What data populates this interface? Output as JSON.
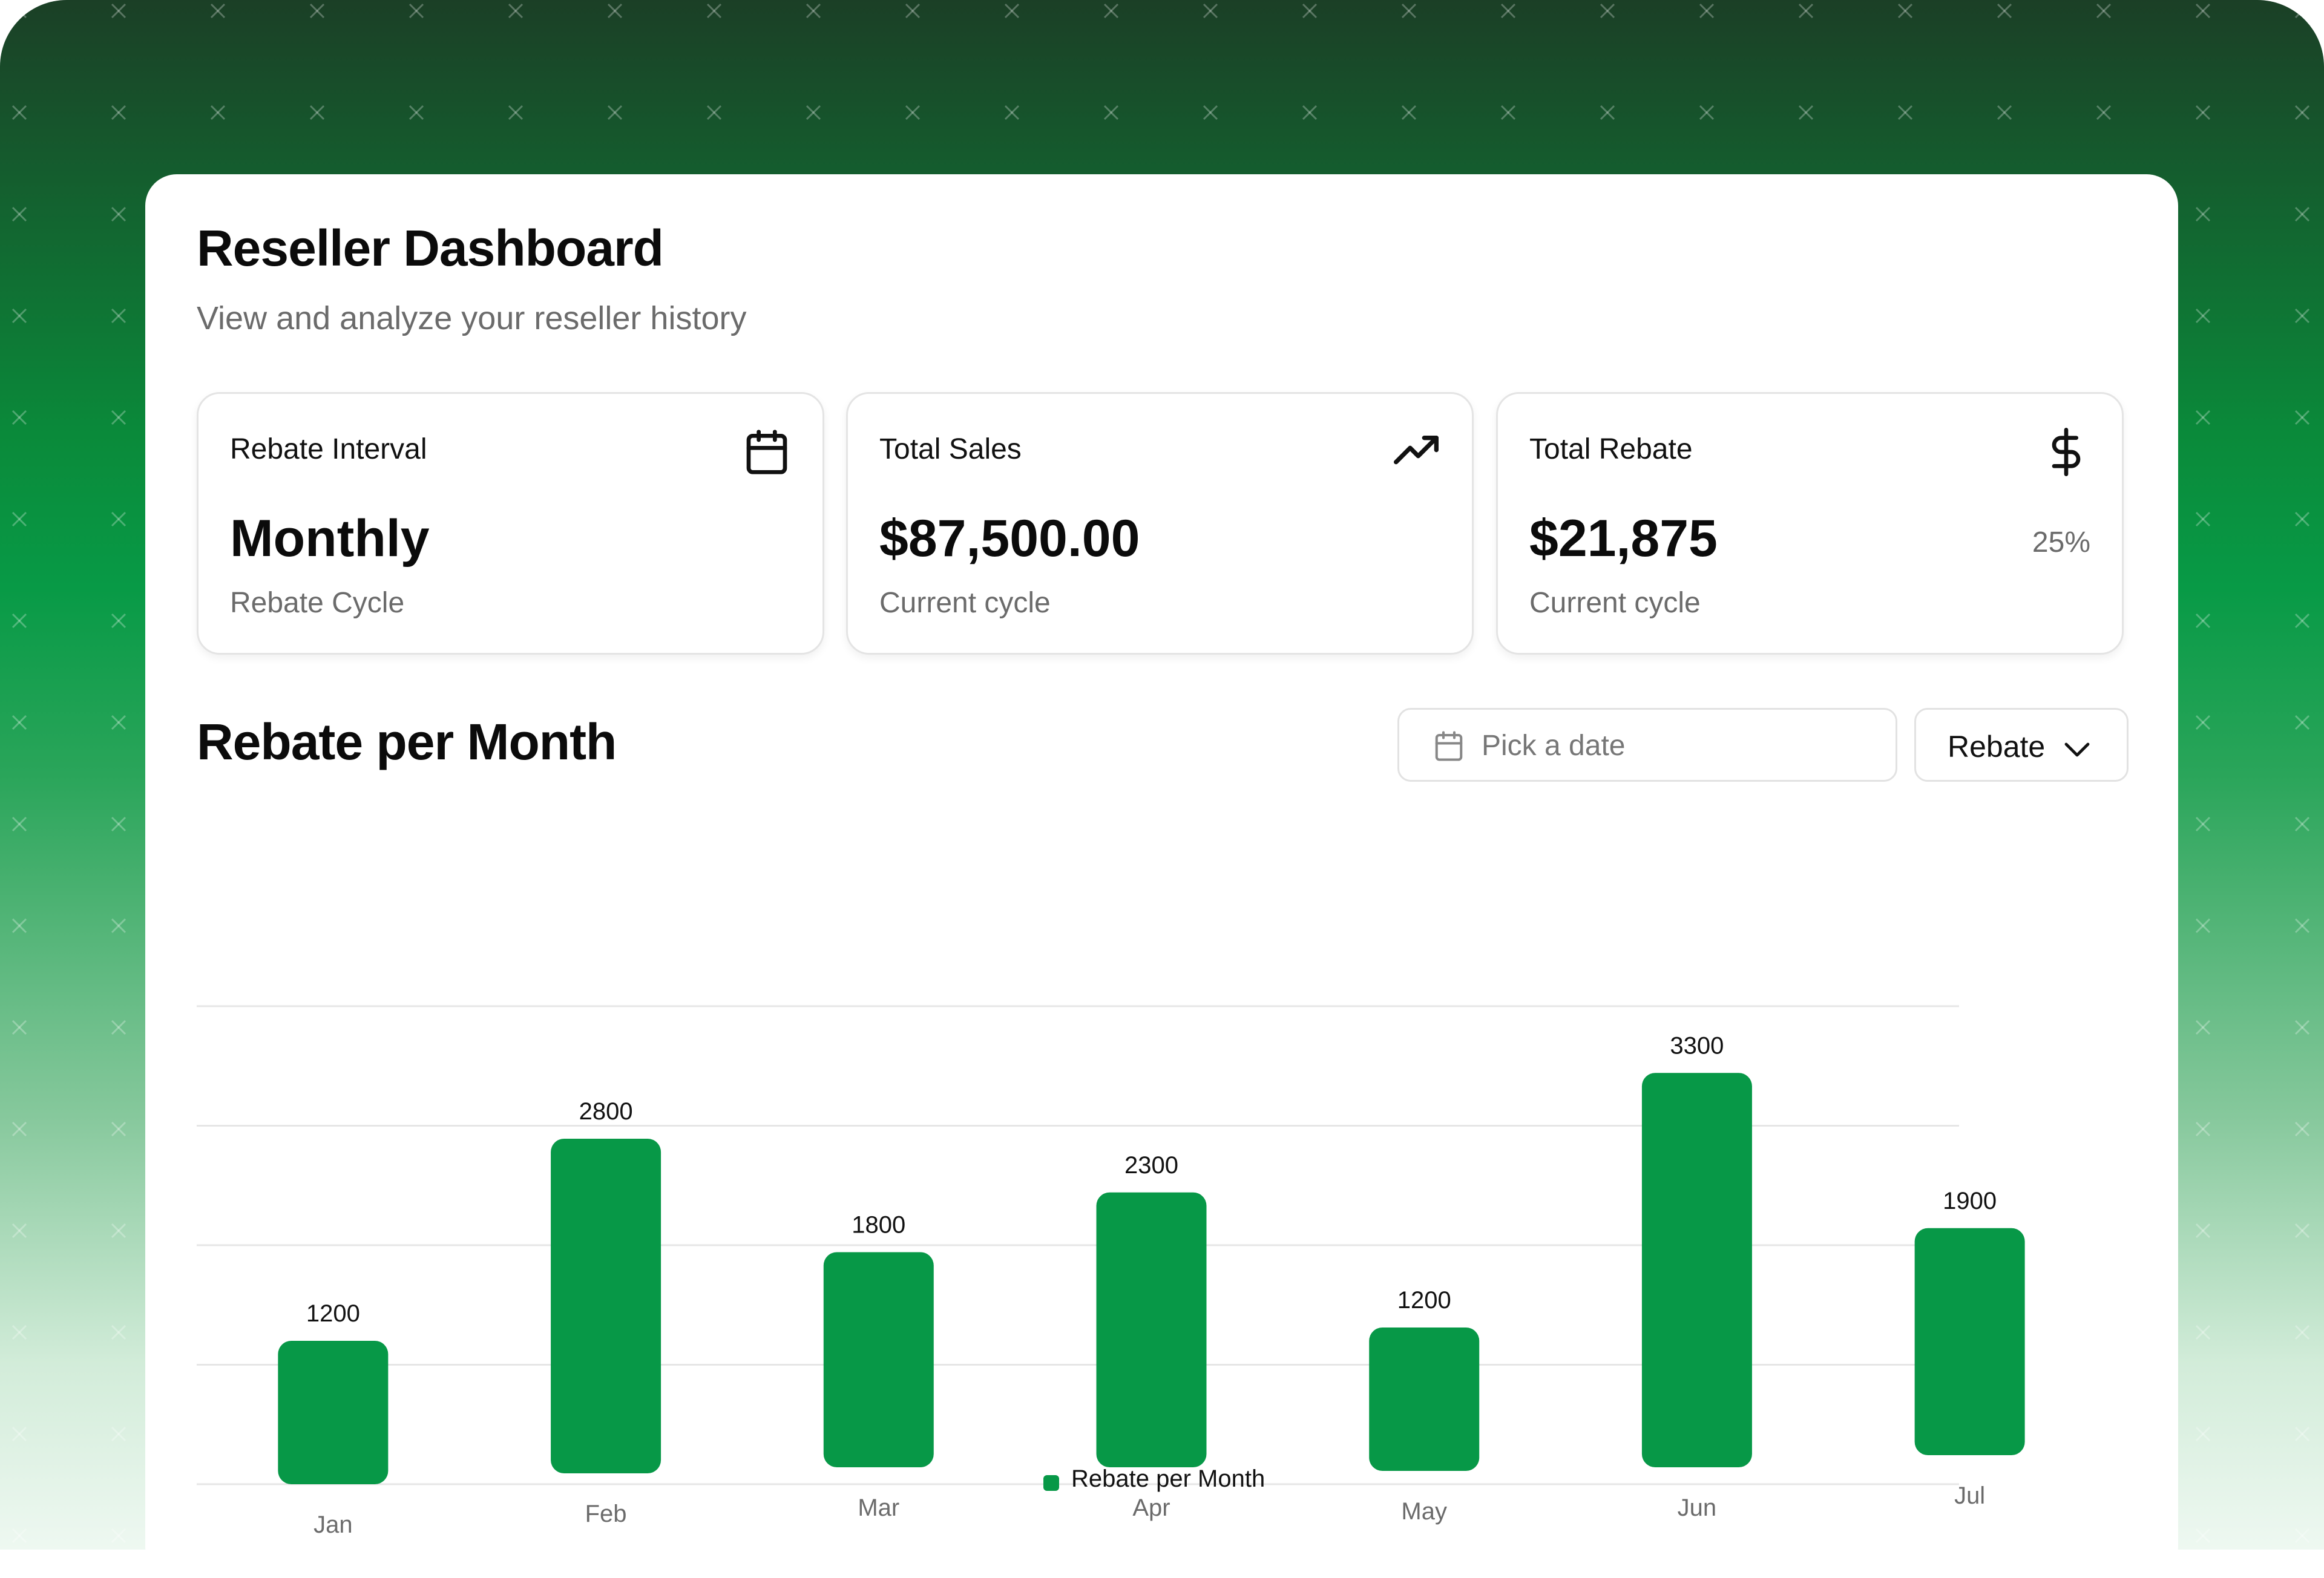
{
  "page": {
    "title": "Reseller Dashboard",
    "subtitle": "View and analyze your reseller history"
  },
  "stats": [
    {
      "label": "Rebate Interval",
      "value": "Monthly",
      "sub": "Rebate Cycle",
      "icon": "calendar-icon"
    },
    {
      "label": "Total Sales",
      "value": "$87,500.00",
      "sub": "Current cycle",
      "icon": "trending-up-icon"
    },
    {
      "label": "Total Rebate",
      "value": "$21,875",
      "sub": "Current cycle",
      "percent": "25%",
      "icon": "dollar-icon"
    }
  ],
  "section": {
    "title": "Rebate per Month",
    "date_placeholder": "Pick a date",
    "select_value": "Rebate"
  },
  "colors": {
    "accent": "#079847"
  },
  "chart_data": {
    "type": "bar",
    "categories": [
      "Jan",
      "Feb",
      "Mar",
      "Apr",
      "May",
      "Jun",
      "Jul"
    ],
    "series": [
      {
        "name": "Rebate per Month",
        "values": [
          1200,
          2800,
          1800,
          2300,
          1200,
          3300,
          1900
        ]
      }
    ],
    "grid": true,
    "legend_position": "bottom-center"
  }
}
